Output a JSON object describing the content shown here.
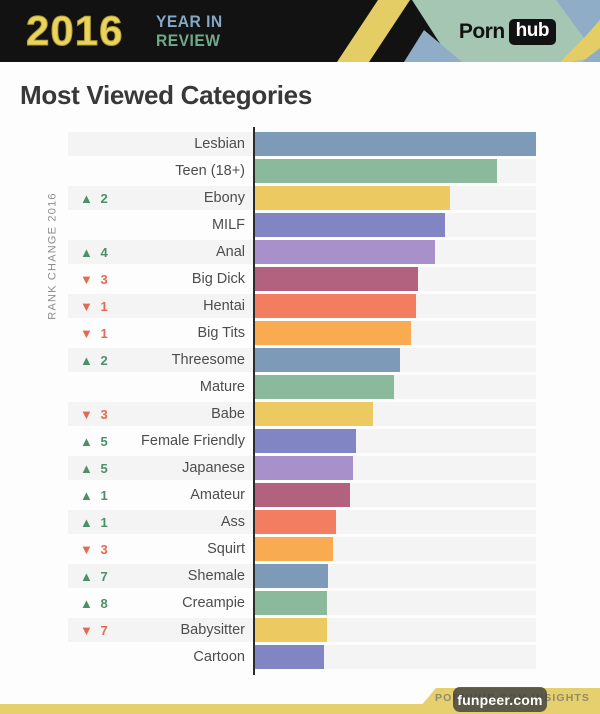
{
  "header": {
    "year": "2016",
    "tagline_line1": "YEAR IN",
    "tagline_line2": "REVIEW",
    "brand_part1": "Porn",
    "brand_part2": "hub"
  },
  "title": "Most Viewed Categories",
  "footer": {
    "ribbon_text": "PORNHUB.COM INSIGHTS",
    "watermark": "funpeer.com"
  },
  "colors": {
    "header_bg": "#121212",
    "header_yellow": "#e5cd66",
    "header_green": "#a5c6b2",
    "header_blue": "#8fadc7",
    "logo_year_yellow": "#e9d45f",
    "tagline_blue": "#85a9c5",
    "tagline_green": "#6fa98b",
    "up_green": "#4d8f68",
    "down_red": "#e36a4f",
    "track_gray": "#f4f4f4",
    "axis_black": "#2b2b2b",
    "footer_yellow": "#e6cf6d"
  },
  "chart_data": {
    "type": "bar",
    "orientation": "horizontal",
    "title": "Most Viewed Categories",
    "axis_label": "RANK CHANGE 2016",
    "grid": false,
    "legend": false,
    "value_unit": "percent_of_longest_bar",
    "xlim": [
      0,
      100
    ],
    "categories": [
      "Lesbian",
      "Teen (18+)",
      "Ebony",
      "MILF",
      "Anal",
      "Big Dick",
      "Hentai",
      "Big Tits",
      "Threesome",
      "Mature",
      "Babe",
      "Female Friendly",
      "Japanese",
      "Amateur",
      "Ass",
      "Squirt",
      "Shemale",
      "Creampie",
      "Babysitter",
      "Cartoon"
    ],
    "values": [
      100,
      86,
      69.5,
      67.5,
      64,
      58,
      57.3,
      55.5,
      51.5,
      49.5,
      42,
      36,
      35,
      33.8,
      29,
      27.8,
      26,
      25.7,
      25.6,
      24.5
    ],
    "rank_changes": [
      null,
      null,
      {
        "dir": "up",
        "n": 2
      },
      null,
      {
        "dir": "up",
        "n": 4
      },
      {
        "dir": "down",
        "n": 3
      },
      {
        "dir": "down",
        "n": 1
      },
      {
        "dir": "down",
        "n": 1
      },
      {
        "dir": "up",
        "n": 2
      },
      null,
      {
        "dir": "down",
        "n": 3
      },
      {
        "dir": "up",
        "n": 5
      },
      {
        "dir": "up",
        "n": 5
      },
      {
        "dir": "up",
        "n": 1
      },
      {
        "dir": "up",
        "n": 1
      },
      {
        "dir": "down",
        "n": 3
      },
      {
        "dir": "up",
        "n": 7
      },
      {
        "dir": "up",
        "n": 8
      },
      {
        "dir": "down",
        "n": 7
      },
      null
    ],
    "palette": [
      "#7d9ab8",
      "#8bb99c",
      "#edc961",
      "#8185c4",
      "#a890cb",
      "#b2617e",
      "#f37d61",
      "#f8ab51"
    ],
    "glyphs": {
      "up": "▲",
      "down": "▼"
    }
  }
}
